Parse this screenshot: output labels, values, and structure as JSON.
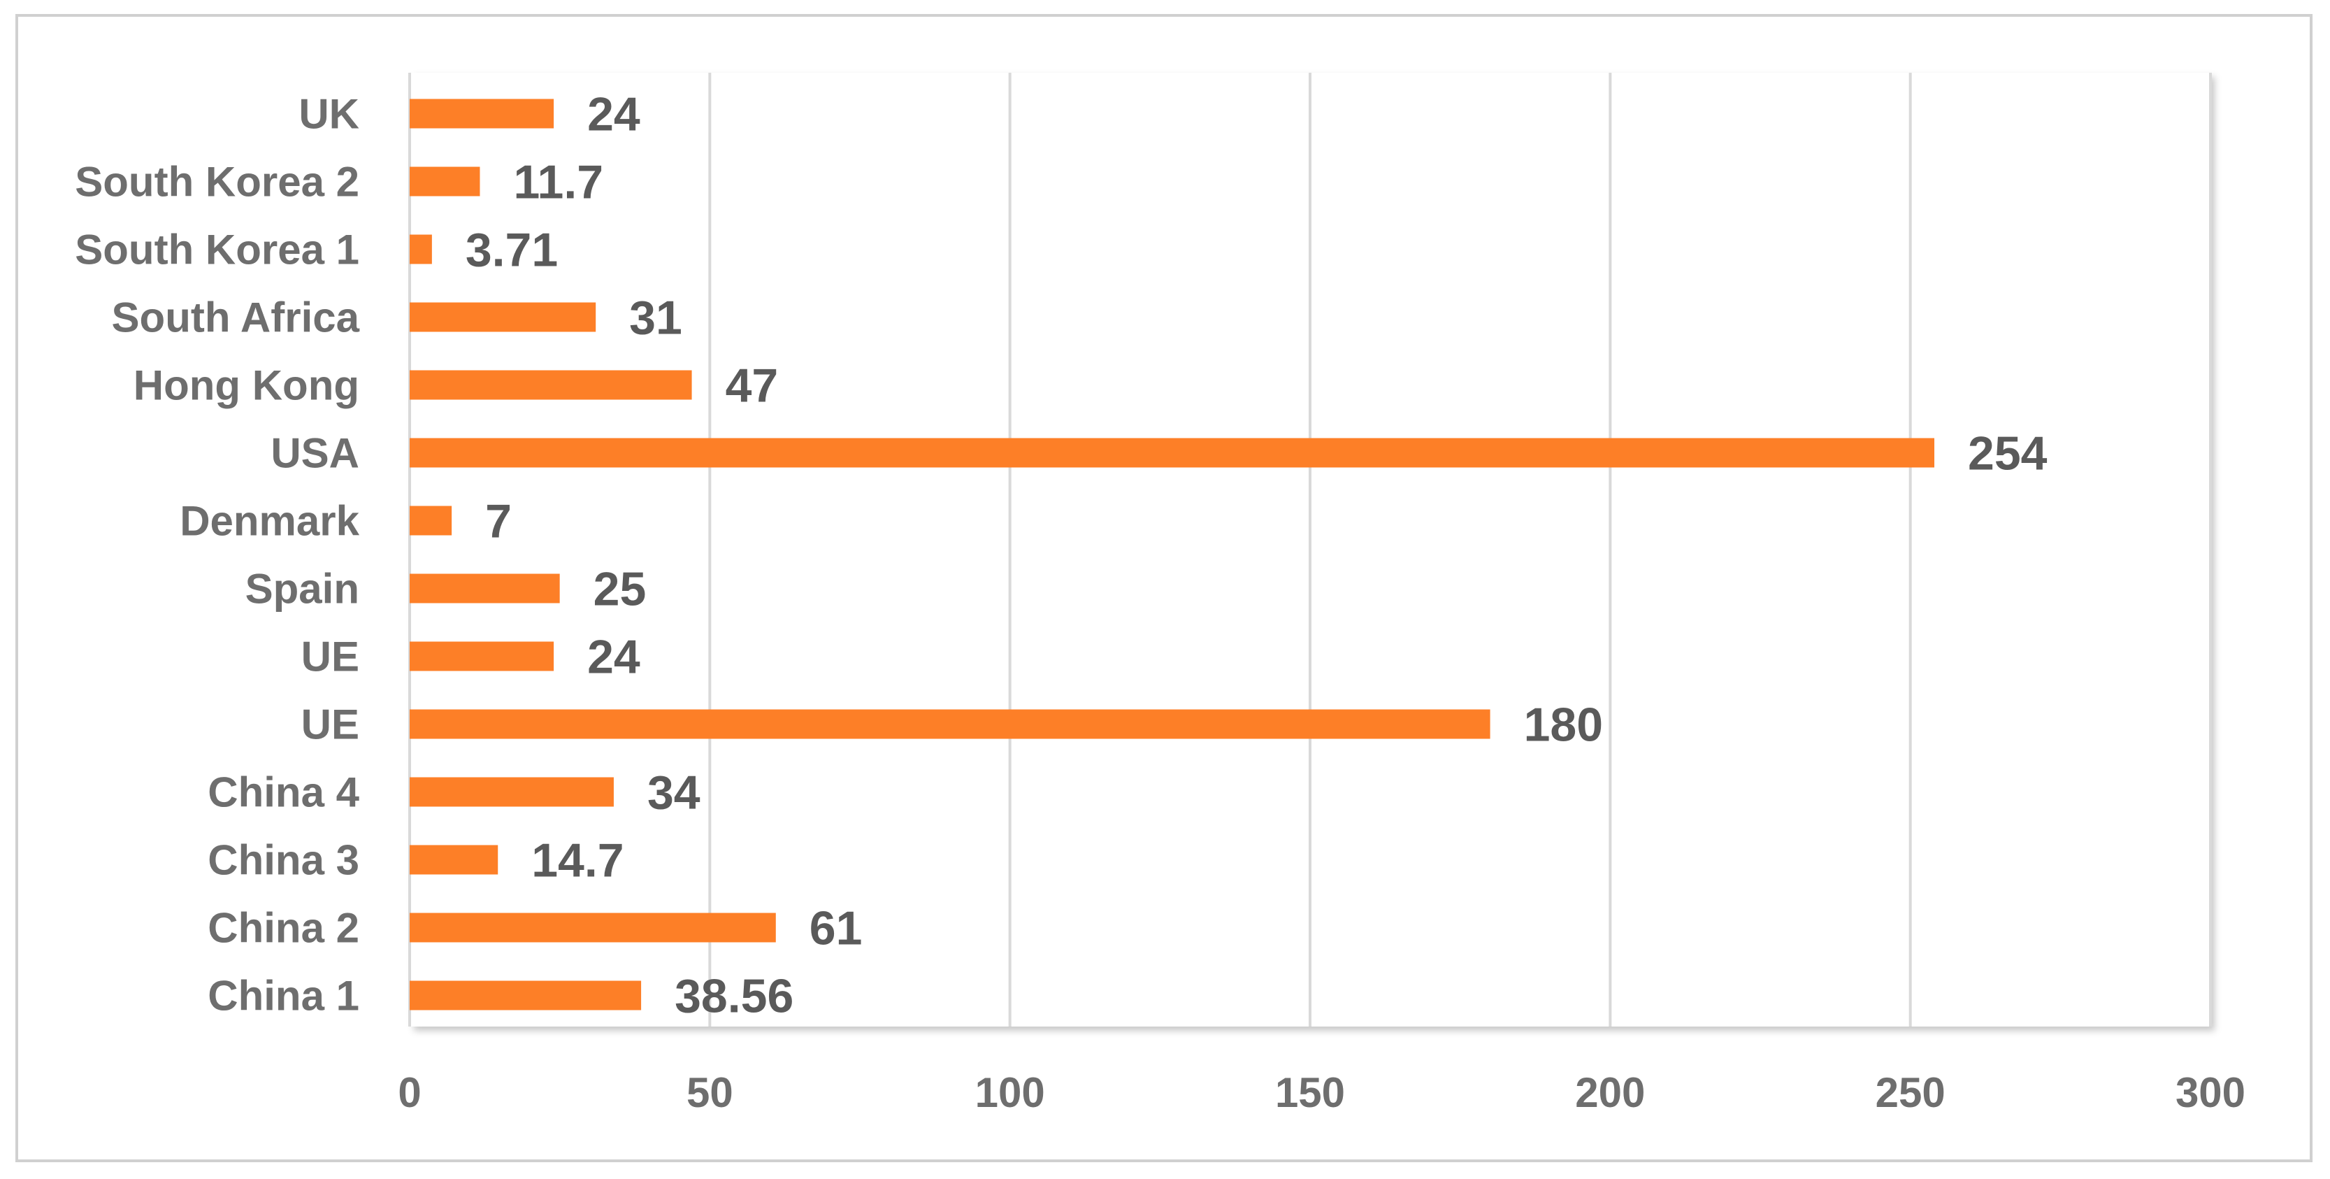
{
  "chart_data": {
    "type": "bar",
    "orientation": "horizontal",
    "categories": [
      "China 1",
      "China 2",
      "China 3",
      "China 4",
      "UE",
      "UE",
      "Spain",
      "Denmark",
      "USA",
      "Hong Kong",
      "South Africa",
      "South Korea 1",
      "South Korea 2",
      "UK"
    ],
    "values": [
      38.56,
      61,
      14.7,
      34,
      180,
      24,
      25,
      7,
      254,
      47,
      31,
      3.71,
      11.7,
      24
    ],
    "data_labels": [
      "38.56",
      "61",
      "14.7",
      "34",
      "180",
      "24",
      "25",
      "7",
      "254",
      "47",
      "31",
      "3.71",
      "11.7",
      "24"
    ],
    "xlim": [
      0,
      300
    ],
    "xticks": [
      0,
      50,
      100,
      150,
      200,
      250,
      300
    ],
    "xtick_labels": [
      "0",
      "50",
      "100",
      "150",
      "200",
      "250",
      "300"
    ],
    "title": "",
    "xlabel": "",
    "ylabel": "",
    "grid": "vertical",
    "legend": "none",
    "colors": {
      "bar": "#fd7f27",
      "grid": "#d9d9d9",
      "axis_text": "#6e6e6e",
      "data_label": "#5a5a5a",
      "frame": "#d0d0d0"
    }
  }
}
